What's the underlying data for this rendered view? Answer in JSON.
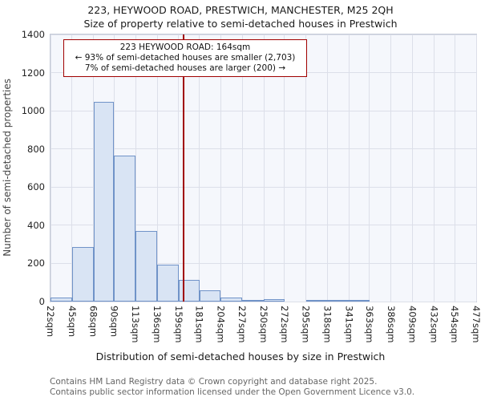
{
  "chart_data": {
    "type": "bar",
    "title": "223, HEYWOOD ROAD, PRESTWICH, MANCHESTER, M25 2QH",
    "subtitle": "Size of property relative to semi-detached houses in Prestwich",
    "xlabel": "Distribution of semi-detached houses by size in Prestwich",
    "ylabel": "Number of semi-detached properties",
    "ylim": [
      0,
      1400
    ],
    "ytick_step": 200,
    "grid": "on",
    "bin_edges": [
      22,
      45,
      68,
      90,
      113,
      136,
      159,
      181,
      204,
      227,
      250,
      272,
      295,
      318,
      341,
      363,
      386,
      409,
      432,
      454,
      477
    ],
    "tick_labels": [
      "22sqm",
      "45sqm",
      "68sqm",
      "90sqm",
      "113sqm",
      "136sqm",
      "159sqm",
      "181sqm",
      "204sqm",
      "227sqm",
      "250sqm",
      "272sqm",
      "295sqm",
      "318sqm",
      "341sqm",
      "363sqm",
      "386sqm",
      "409sqm",
      "432sqm",
      "454sqm",
      "477sqm"
    ],
    "values": [
      20,
      285,
      1045,
      765,
      370,
      195,
      115,
      60,
      20,
      10,
      12,
      0,
      8,
      5,
      3,
      0,
      0,
      0,
      0,
      0
    ],
    "marker": {
      "value": 164
    },
    "annotation": {
      "line1": "223 HEYWOOD ROAD: 164sqm",
      "line2": "← 93% of semi-detached houses are smaller (2,703)",
      "line3": "7% of semi-detached houses are larger (200) →"
    },
    "colors": {
      "bar_fill": "#d9e4f4",
      "bar_border": "#7093c8",
      "marker_line": "#a00000",
      "annotation_border": "#a00000",
      "grid": "#dcdfe9",
      "plot_bg": "#f5f7fc"
    }
  },
  "footer": {
    "line1": "Contains HM Land Registry data © Crown copyright and database right 2025.",
    "line2": "Contains public sector information licensed under the Open Government Licence v3.0."
  }
}
